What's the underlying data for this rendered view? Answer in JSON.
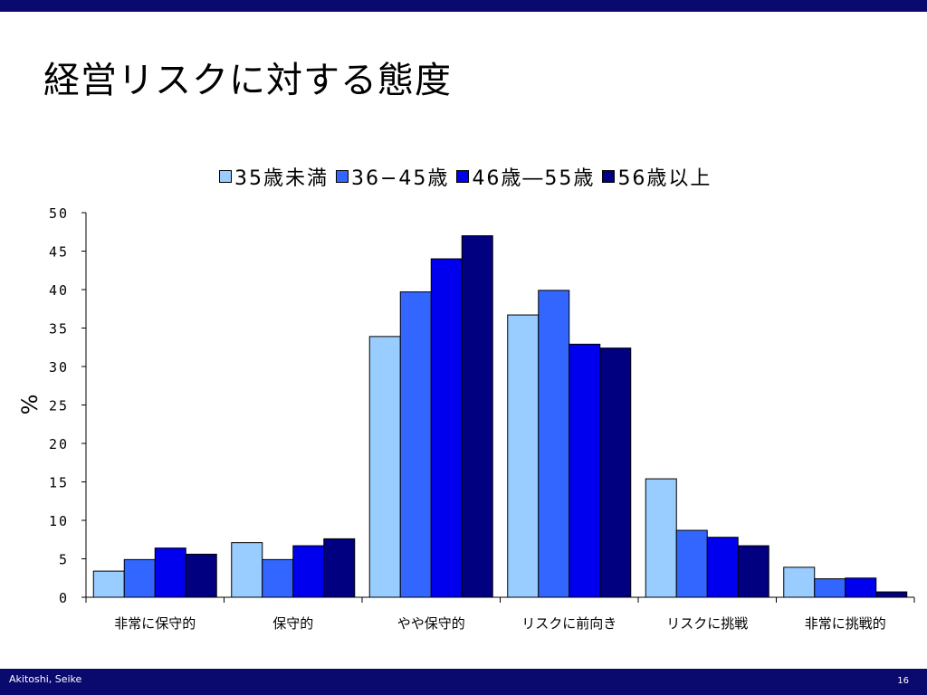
{
  "slide": {
    "title": "経営リスクに対する態度",
    "footer_author": "Akitoshi, Seike",
    "page_number": "16"
  },
  "colors": {
    "bar_border": "#000000",
    "top_bar": "#0a0a6e",
    "bottom_bar": "#0a0a6e"
  },
  "chart_data": {
    "type": "bar",
    "title": "",
    "ylabel": "%",
    "xlabel": "",
    "ylim": [
      0,
      50
    ],
    "yticks": [
      0,
      5,
      10,
      15,
      20,
      25,
      30,
      35,
      40,
      45,
      50
    ],
    "legend_position": "top",
    "grid": false,
    "categories": [
      "非常に保守的",
      "保守的",
      "やや保守的",
      "リスクに前向き",
      "リスクに挑戦",
      "非常に挑戦的"
    ],
    "series": [
      {
        "name": "35歳未満",
        "color": "#99ccff",
        "values": [
          3.4,
          7.1,
          33.9,
          36.7,
          15.4,
          3.9
        ]
      },
      {
        "name": "36−45歳",
        "color": "#3366ff",
        "values": [
          4.9,
          4.9,
          39.7,
          39.9,
          8.7,
          2.4
        ]
      },
      {
        "name": "46歳―55歳",
        "color": "#0000ee",
        "values": [
          6.4,
          6.7,
          44.0,
          32.9,
          7.8,
          2.5
        ]
      },
      {
        "name": "56歳以上",
        "color": "#000080",
        "values": [
          5.6,
          7.6,
          47.0,
          32.4,
          6.7,
          0.7
        ]
      }
    ]
  }
}
